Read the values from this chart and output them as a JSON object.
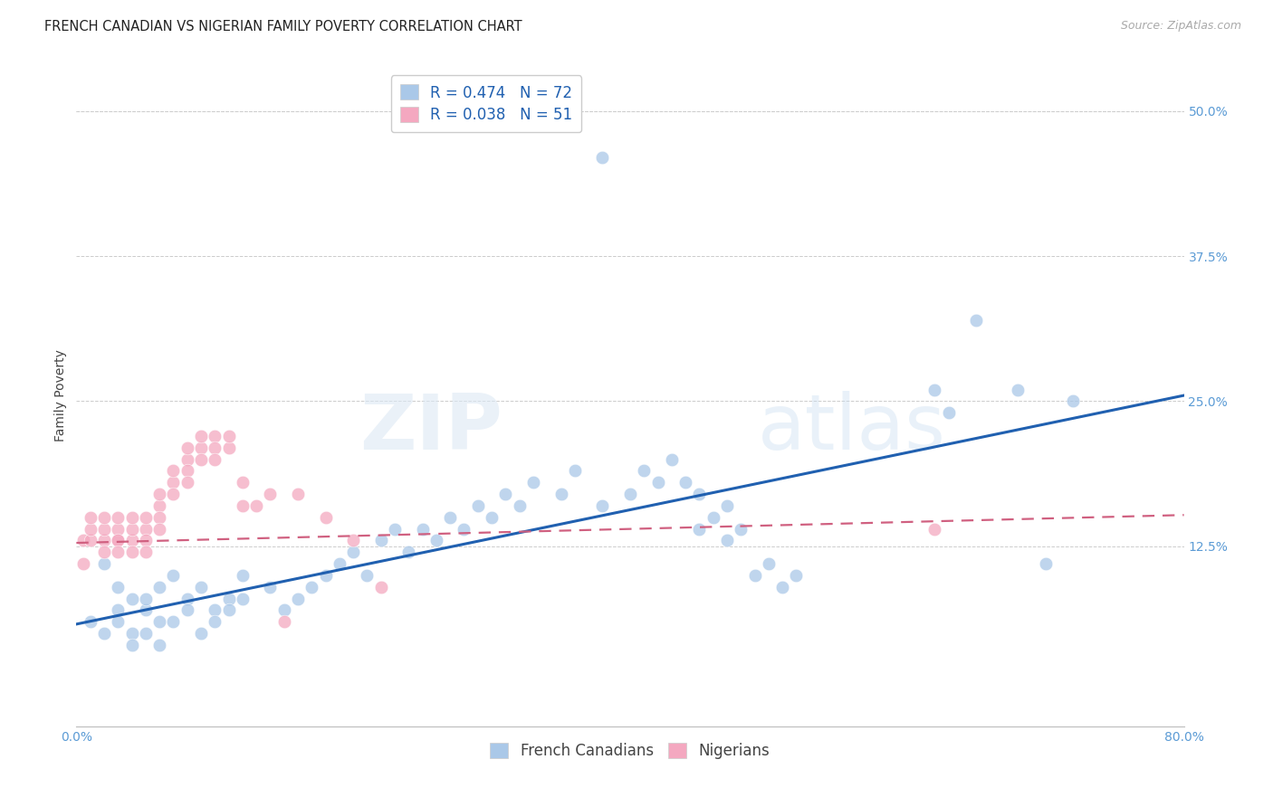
{
  "title": "FRENCH CANADIAN VS NIGERIAN FAMILY POVERTY CORRELATION CHART",
  "source": "Source: ZipAtlas.com",
  "ylabel": "Family Poverty",
  "xlim": [
    0.0,
    0.8
  ],
  "ylim": [
    -0.03,
    0.54
  ],
  "blue_R": 0.474,
  "blue_N": 72,
  "pink_R": 0.038,
  "pink_N": 51,
  "blue_color": "#aac8e8",
  "pink_color": "#f4a8c0",
  "blue_line_color": "#2060b0",
  "pink_line_color": "#d06080",
  "legend_label_blue": "French Canadians",
  "legend_label_pink": "Nigerians",
  "blue_line_y_start": 0.058,
  "blue_line_y_end": 0.255,
  "pink_line_y_start": 0.128,
  "pink_line_y_end": 0.152,
  "ytick_positions": [
    0.125,
    0.25,
    0.375,
    0.5
  ],
  "ytick_labels": [
    "12.5%",
    "25.0%",
    "37.5%",
    "50.0%"
  ],
  "grid_color": "#cccccc",
  "background_color": "#ffffff",
  "title_fontsize": 10.5,
  "tick_label_fontsize": 10,
  "legend_fontsize": 12,
  "source_fontsize": 9,
  "blue_x": [
    0.38,
    0.03,
    0.04,
    0.05,
    0.06,
    0.02,
    0.03,
    0.04,
    0.05,
    0.06,
    0.07,
    0.08,
    0.09,
    0.1,
    0.11,
    0.12,
    0.14,
    0.15,
    0.16,
    0.17,
    0.18,
    0.19,
    0.2,
    0.21,
    0.22,
    0.23,
    0.24,
    0.25,
    0.26,
    0.27,
    0.28,
    0.29,
    0.3,
    0.31,
    0.32,
    0.33,
    0.35,
    0.36,
    0.38,
    0.4,
    0.41,
    0.42,
    0.43,
    0.44,
    0.45,
    0.46,
    0.47,
    0.48,
    0.49,
    0.5,
    0.51,
    0.52,
    0.45,
    0.47,
    0.62,
    0.63,
    0.65,
    0.68,
    0.7,
    0.72,
    0.01,
    0.02,
    0.03,
    0.04,
    0.05,
    0.06,
    0.07,
    0.08,
    0.09,
    0.1,
    0.11,
    0.12
  ],
  "blue_y": [
    0.46,
    0.09,
    0.08,
    0.07,
    0.06,
    0.11,
    0.07,
    0.05,
    0.08,
    0.09,
    0.1,
    0.08,
    0.09,
    0.07,
    0.08,
    0.1,
    0.09,
    0.07,
    0.08,
    0.09,
    0.1,
    0.11,
    0.12,
    0.1,
    0.13,
    0.14,
    0.12,
    0.14,
    0.13,
    0.15,
    0.14,
    0.16,
    0.15,
    0.17,
    0.16,
    0.18,
    0.17,
    0.19,
    0.16,
    0.17,
    0.19,
    0.18,
    0.2,
    0.18,
    0.17,
    0.15,
    0.16,
    0.14,
    0.1,
    0.11,
    0.09,
    0.1,
    0.14,
    0.13,
    0.26,
    0.24,
    0.32,
    0.26,
    0.11,
    0.25,
    0.06,
    0.05,
    0.06,
    0.04,
    0.05,
    0.04,
    0.06,
    0.07,
    0.05,
    0.06,
    0.07,
    0.08
  ],
  "pink_x": [
    0.005,
    0.01,
    0.01,
    0.01,
    0.02,
    0.02,
    0.02,
    0.02,
    0.03,
    0.03,
    0.03,
    0.03,
    0.03,
    0.04,
    0.04,
    0.04,
    0.04,
    0.05,
    0.05,
    0.05,
    0.05,
    0.06,
    0.06,
    0.06,
    0.06,
    0.07,
    0.07,
    0.07,
    0.08,
    0.08,
    0.08,
    0.08,
    0.09,
    0.09,
    0.09,
    0.1,
    0.1,
    0.1,
    0.11,
    0.11,
    0.12,
    0.12,
    0.13,
    0.14,
    0.15,
    0.16,
    0.18,
    0.2,
    0.22,
    0.62,
    0.005
  ],
  "pink_y": [
    0.13,
    0.13,
    0.14,
    0.15,
    0.13,
    0.12,
    0.14,
    0.15,
    0.13,
    0.14,
    0.15,
    0.13,
    0.12,
    0.13,
    0.14,
    0.12,
    0.15,
    0.14,
    0.15,
    0.13,
    0.12,
    0.16,
    0.17,
    0.15,
    0.14,
    0.18,
    0.19,
    0.17,
    0.2,
    0.21,
    0.19,
    0.18,
    0.21,
    0.22,
    0.2,
    0.22,
    0.21,
    0.2,
    0.21,
    0.22,
    0.18,
    0.16,
    0.16,
    0.17,
    0.06,
    0.17,
    0.15,
    0.13,
    0.09,
    0.14,
    0.11
  ]
}
